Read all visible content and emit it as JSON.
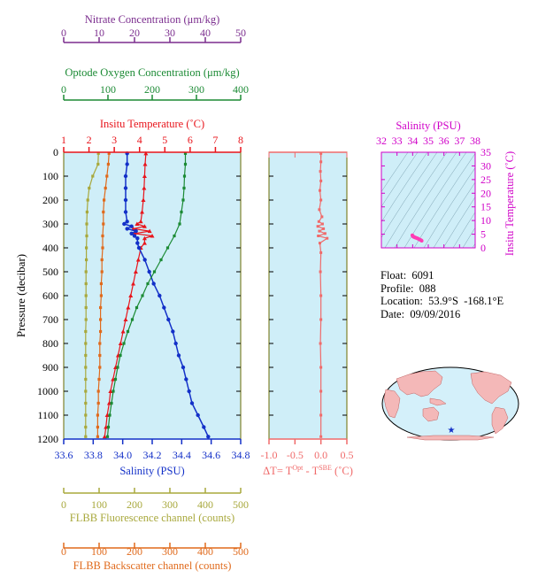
{
  "colors": {
    "panel_bg": "#cfeef8",
    "nitrate": "#7b2d8e",
    "oxygen": "#1b8a34",
    "temperature": "#e8141b",
    "salinity": "#1330c8",
    "fluorescence": "#a8a83c",
    "backscatter": "#e06a1c",
    "delta_t": "#f06a6a",
    "ts_axes": "#d000c8",
    "ts_points": "#ff3cb4",
    "map_land": "#f4b8b8",
    "map_ocean": "#d4f0fa",
    "star": "#1330c8",
    "frame_olive": "#6b6b00"
  },
  "info": {
    "float_label": "Float:",
    "float_value": "6091",
    "profile_label": "Profile:",
    "profile_value": "088",
    "location_label": "Location:",
    "location_value": "53.9°S  -168.1°E",
    "date_label": "Date:",
    "date_value": "09/09/2016"
  },
  "chart_data": [
    {
      "type": "line",
      "panel": "main-profile",
      "ylabel": "Pressure (decibar)",
      "y_inverted": true,
      "ylim": [
        0,
        1200
      ],
      "yticks": [
        "0",
        "100",
        "200",
        "300",
        "400",
        "500",
        "600",
        "700",
        "800",
        "900",
        "1000",
        "1100",
        "1200"
      ],
      "axes": {
        "nitrate": {
          "label": "Nitrate Concentration (μm/kg)",
          "range": [
            0,
            50
          ],
          "ticks": [
            "0",
            "10",
            "20",
            "30",
            "40",
            "50"
          ]
        },
        "oxygen": {
          "label": "Optode Oxygen Concentration (μm/kg)",
          "range": [
            0,
            400
          ],
          "ticks": [
            "0",
            "100",
            "200",
            "300",
            "400"
          ]
        },
        "temperature": {
          "label": "Insitu Temperature (˚C)",
          "range": [
            1,
            8
          ],
          "ticks": [
            "1",
            "2",
            "3",
            "4",
            "5",
            "6",
            "7",
            "8"
          ]
        },
        "salinity": {
          "label": "Salinity (PSU)",
          "range": [
            33.6,
            34.8
          ],
          "ticks": [
            "33.6",
            "33.8",
            "34.0",
            "34.2",
            "34.4",
            "34.6",
            "34.8"
          ]
        },
        "fluorescence": {
          "label": "FLBB Fluorescence channel (counts)",
          "range": [
            0,
            500
          ],
          "ticks": [
            "0",
            "100",
            "200",
            "300",
            "400",
            "500"
          ]
        },
        "backscatter": {
          "label": "FLBB Backscatter channel (counts)",
          "range": [
            0,
            500
          ],
          "ticks": [
            "0",
            "100",
            "200",
            "300",
            "400",
            "500"
          ]
        }
      },
      "series": [
        {
          "key": "temperature",
          "pressure": [
            5,
            50,
            100,
            150,
            200,
            250,
            290,
            300,
            310,
            320,
            330,
            340,
            350,
            360,
            380,
            400,
            450,
            500,
            550,
            600,
            650,
            700,
            750,
            800,
            850,
            900,
            950,
            1000,
            1050,
            1100,
            1150,
            1190
          ],
          "values": [
            4.25,
            4.22,
            4.2,
            4.18,
            4.15,
            4.1,
            4.05,
            3.9,
            4.2,
            3.75,
            4.4,
            3.8,
            4.5,
            4.2,
            4.2,
            4.05,
            3.95,
            3.85,
            3.75,
            3.65,
            3.55,
            3.45,
            3.35,
            3.25,
            3.15,
            3.05,
            2.95,
            2.85,
            2.8,
            2.72,
            2.67,
            2.62
          ]
        },
        {
          "key": "salinity",
          "pressure": [
            5,
            50,
            100,
            150,
            200,
            250,
            290,
            300,
            310,
            320,
            330,
            340,
            350,
            360,
            380,
            400,
            450,
            500,
            550,
            600,
            650,
            700,
            750,
            800,
            850,
            900,
            950,
            1000,
            1050,
            1100,
            1150,
            1190
          ],
          "values": [
            34.03,
            34.03,
            34.02,
            34.02,
            34.02,
            34.02,
            34.03,
            34.01,
            34.06,
            34.03,
            34.09,
            34.06,
            34.08,
            34.1,
            34.1,
            34.11,
            34.15,
            34.18,
            34.21,
            34.25,
            34.28,
            34.31,
            34.34,
            34.36,
            34.38,
            34.41,
            34.43,
            34.45,
            34.47,
            34.51,
            34.55,
            34.58
          ]
        },
        {
          "key": "oxygen",
          "pressure": [
            5,
            50,
            100,
            150,
            200,
            250,
            300,
            350,
            400,
            450,
            500,
            550,
            600,
            650,
            700,
            750,
            800,
            850,
            900,
            950,
            1000,
            1050,
            1100,
            1150,
            1190
          ],
          "values": [
            275,
            275,
            273,
            272,
            270,
            266,
            262,
            250,
            235,
            220,
            205,
            190,
            178,
            165,
            155,
            145,
            136,
            128,
            122,
            117,
            112,
            108,
            104,
            101,
            99
          ]
        },
        {
          "key": "fluorescence",
          "pressure": [
            5,
            50,
            100,
            150,
            200,
            250,
            300,
            350,
            400,
            450,
            500,
            550,
            600,
            650,
            700,
            750,
            800,
            850,
            900,
            950,
            1000,
            1050,
            1100,
            1150,
            1190
          ],
          "values": [
            98,
            97,
            82,
            72,
            68,
            66,
            65,
            65,
            64,
            64,
            63,
            63,
            63,
            63,
            63,
            62,
            62,
            62,
            62,
            62,
            62,
            62,
            62,
            62,
            62
          ]
        },
        {
          "key": "backscatter",
          "pressure": [
            5,
            50,
            100,
            150,
            200,
            250,
            300,
            350,
            400,
            450,
            500,
            550,
            600,
            650,
            700,
            750,
            800,
            850,
            900,
            950,
            1000,
            1050,
            1100,
            1150,
            1190
          ],
          "values": [
            128,
            126,
            122,
            118,
            114,
            112,
            112,
            110,
            110,
            108,
            108,
            106,
            106,
            104,
            104,
            104,
            102,
            102,
            102,
            100,
            98,
            98,
            96,
            96,
            96
          ]
        },
        {
          "key": "nitrate",
          "pressure": [],
          "values": []
        }
      ]
    },
    {
      "type": "line",
      "panel": "delta-t",
      "xlabel": "ΔT= T^Opt - T^SBE (˚C)",
      "xlabel_parts": {
        "prefix": "ΔT= T",
        "sup1": "Opt",
        "mid": " - T",
        "sup2": "SBE",
        "suffix": " (˚C)"
      },
      "xlim": [
        -1.0,
        0.5
      ],
      "xticks": [
        "-1.0",
        "-0.5",
        "0.0",
        "0.5"
      ],
      "pressure": [
        5,
        40,
        80,
        120,
        160,
        200,
        240,
        270,
        290,
        300,
        310,
        320,
        330,
        340,
        350,
        360,
        380,
        420,
        500,
        600,
        700,
        800,
        900,
        1000,
        1100,
        1190
      ],
      "values": [
        0.0,
        0.0,
        -0.01,
        0.0,
        -0.02,
        0.0,
        -0.03,
        0.02,
        -0.04,
        0.03,
        -0.06,
        0.05,
        -0.03,
        0.08,
        -0.05,
        0.12,
        -0.02,
        0.0,
        -0.01,
        0.0,
        0.0,
        -0.01,
        0.0,
        0.0,
        0.0,
        0.0
      ]
    },
    {
      "type": "scatter",
      "panel": "ts-diagram",
      "xlabel": "Salinity (PSU)",
      "ylabel": "Insitu Temperature (˚C)",
      "xlim": [
        32,
        38
      ],
      "ylim": [
        0,
        35
      ],
      "xticks": [
        "32",
        "33",
        "34",
        "35",
        "36",
        "37",
        "38"
      ],
      "yticks": [
        "0",
        "5",
        "10",
        "15",
        "20",
        "25",
        "30",
        "35"
      ],
      "x": [
        33.98,
        34.0,
        34.02,
        34.05,
        34.08,
        34.12,
        34.16,
        34.2,
        34.25,
        34.3,
        34.35,
        34.4,
        34.45,
        34.5,
        34.55,
        34.58
      ],
      "y": [
        4.6,
        4.4,
        4.2,
        4.1,
        4.0,
        3.9,
        3.8,
        3.7,
        3.6,
        3.5,
        3.35,
        3.2,
        3.05,
        2.9,
        2.75,
        2.6
      ]
    }
  ]
}
